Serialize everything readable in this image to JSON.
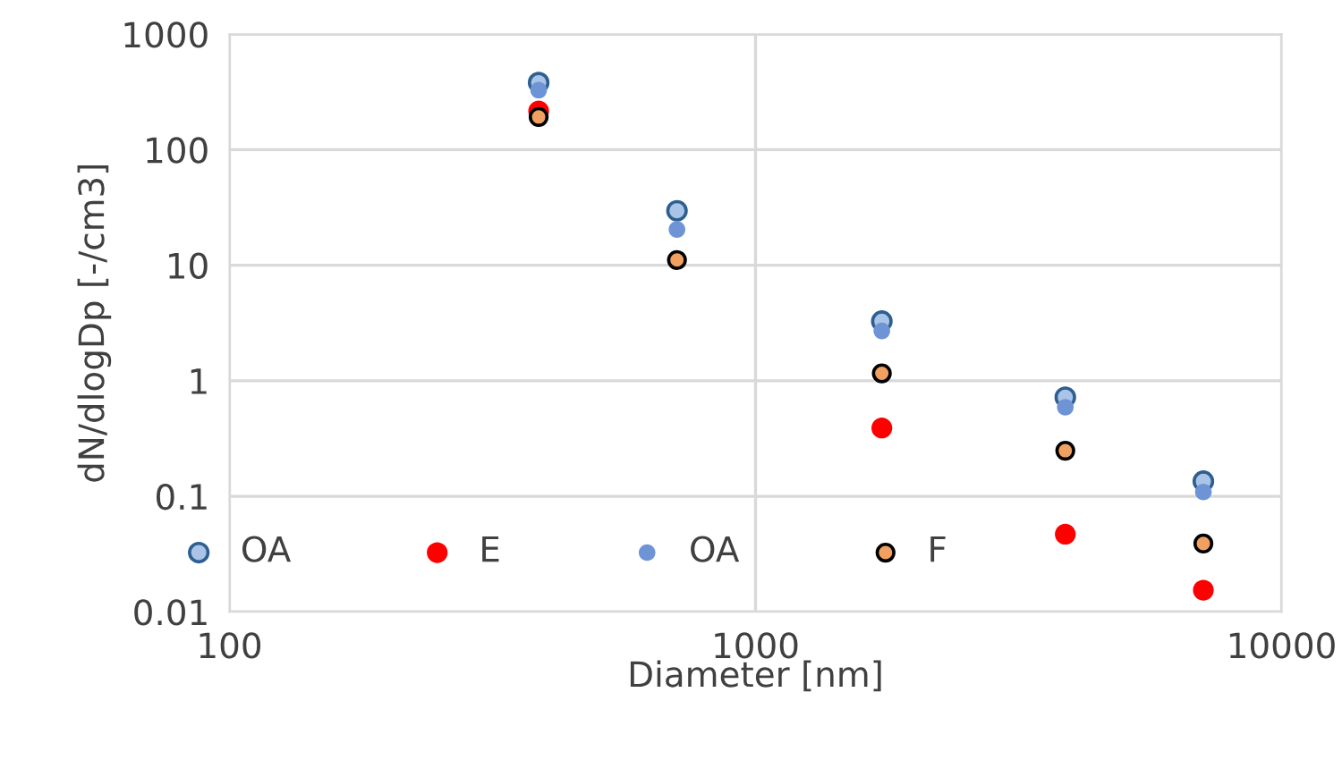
{
  "chart_data": {
    "type": "scatter",
    "xlabel": "Diameter [nm]",
    "ylabel": "dN/dlogDp [-/cm3]",
    "x": [
      387,
      709,
      1738,
      3880,
      7100
    ],
    "series": [
      {
        "name": "OA",
        "color": "#a9c4e6",
        "values": [
          381,
          29.6,
          3.28,
          0.72,
          0.135
        ]
      },
      {
        "name": "E",
        "color": "#ff0000",
        "values": [
          216,
          null,
          0.39,
          0.047,
          0.0154
        ]
      },
      {
        "name": "OA",
        "color": "#6f94d6",
        "values": [
          328,
          20.4,
          2.7,
          0.59,
          0.109
        ]
      },
      {
        "name": "F",
        "color": "#f0a060",
        "values": [
          192,
          11.1,
          1.16,
          0.248,
          0.039
        ]
      }
    ],
    "log": "xy",
    "xlim": [
      100,
      10000
    ],
    "xticks": [
      100,
      1000,
      10000
    ],
    "ylim": [
      0.01,
      1000
    ],
    "yticks": [
      0.01,
      0.1,
      1,
      10,
      100,
      1000
    ],
    "grid": true,
    "legend": "bottom",
    "marker": "circle"
  }
}
